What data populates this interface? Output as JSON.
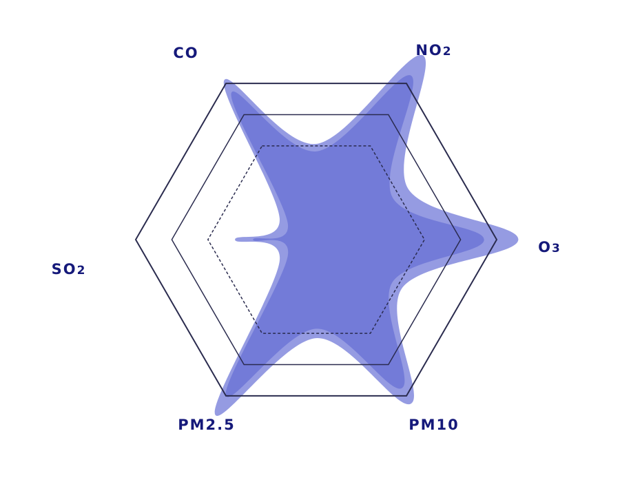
{
  "chart_data": {
    "type": "radar",
    "title": "",
    "axes": [
      "CO",
      "NO2",
      "O3",
      "PM10",
      "PM2.5",
      "SO2"
    ],
    "axis_labels": [
      {
        "text": "CO",
        "sub": ""
      },
      {
        "text": "NO",
        "sub": "2"
      },
      {
        "text": "O",
        "sub": "3"
      },
      {
        "text": "PM10",
        "sub": ""
      },
      {
        "text": "PM2.5",
        "sub": ""
      },
      {
        "text": "SO",
        "sub": "2"
      }
    ],
    "rmax": 1.0,
    "gridlines": [
      0.6,
      0.8,
      1.0
    ],
    "series": [
      {
        "values": [
          1.02,
          1.18,
          1.12,
          1.05,
          1.12,
          0.45
        ],
        "color": "#7e85dc",
        "opacity": 0.82
      },
      {
        "values": [
          0.94,
          1.05,
          0.93,
          0.95,
          1.0,
          0.35
        ],
        "color": "#6b74d6",
        "opacity": 0.82
      }
    ],
    "grid": true,
    "legend": false,
    "label_color": "#15197a"
  }
}
